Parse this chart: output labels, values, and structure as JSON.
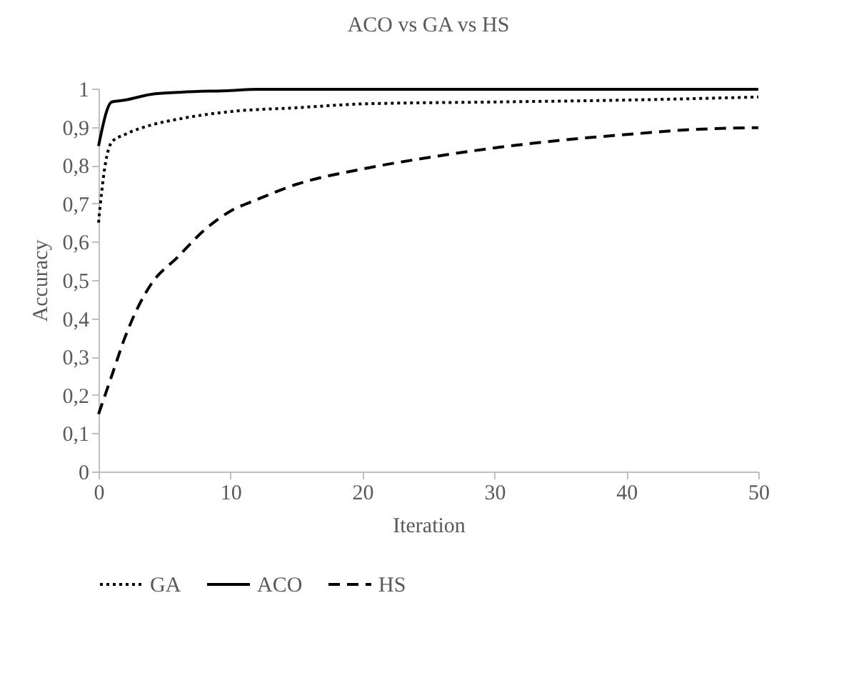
{
  "chart_data": {
    "type": "line",
    "title": "ACO vs GA vs HS",
    "xlabel": "Iteration",
    "ylabel": "Accuracy",
    "xlim": [
      0,
      50
    ],
    "xticks": [
      0,
      10,
      20,
      30,
      40,
      50
    ],
    "ylim": [
      0,
      1
    ],
    "yticks": [
      0,
      {
        "value": 0.1,
        "label": "0,1"
      },
      {
        "value": 0.2,
        "label": "0,2"
      },
      {
        "value": 0.3,
        "label": "0,3"
      },
      {
        "value": 0.4,
        "label": "0,4"
      },
      {
        "value": 0.5,
        "label": "0,5"
      },
      {
        "value": 0.6,
        "label": "0,6"
      },
      {
        "value": 0.7,
        "label": "0,7"
      },
      {
        "value": 0.8,
        "label": "0,8"
      },
      {
        "value": 0.9,
        "label": "0,9"
      },
      1
    ],
    "grid": false,
    "legend": "bottom",
    "marker": "none",
    "series": [
      {
        "name": "GA",
        "color": "#000000",
        "line_style": "dotted",
        "x": [
          0,
          0.5,
          1,
          2,
          4,
          6,
          10,
          15,
          20,
          30,
          40,
          50
        ],
        "values": [
          0.65,
          0.8,
          0.86,
          0.88,
          0.905,
          0.92,
          0.94,
          0.95,
          0.96,
          0.965,
          0.97,
          0.978
        ]
      },
      {
        "name": "ACO",
        "color": "#000000",
        "line_style": "solid",
        "x": [
          0,
          1,
          2,
          4,
          6,
          10,
          12,
          50
        ],
        "values": [
          0.85,
          0.965,
          0.97,
          0.985,
          0.99,
          0.995,
          0.998,
          0.998
        ]
      },
      {
        "name": "HS",
        "color": "#000000",
        "line_style": "dashed",
        "x": [
          0,
          1,
          2,
          3,
          4,
          6,
          8,
          10,
          12,
          15,
          20,
          25,
          30,
          35,
          40,
          45,
          50
        ],
        "values": [
          0.15,
          0.25,
          0.35,
          0.43,
          0.49,
          0.56,
          0.63,
          0.68,
          0.71,
          0.75,
          0.79,
          0.82,
          0.845,
          0.865,
          0.88,
          0.893,
          0.898
        ]
      }
    ]
  }
}
